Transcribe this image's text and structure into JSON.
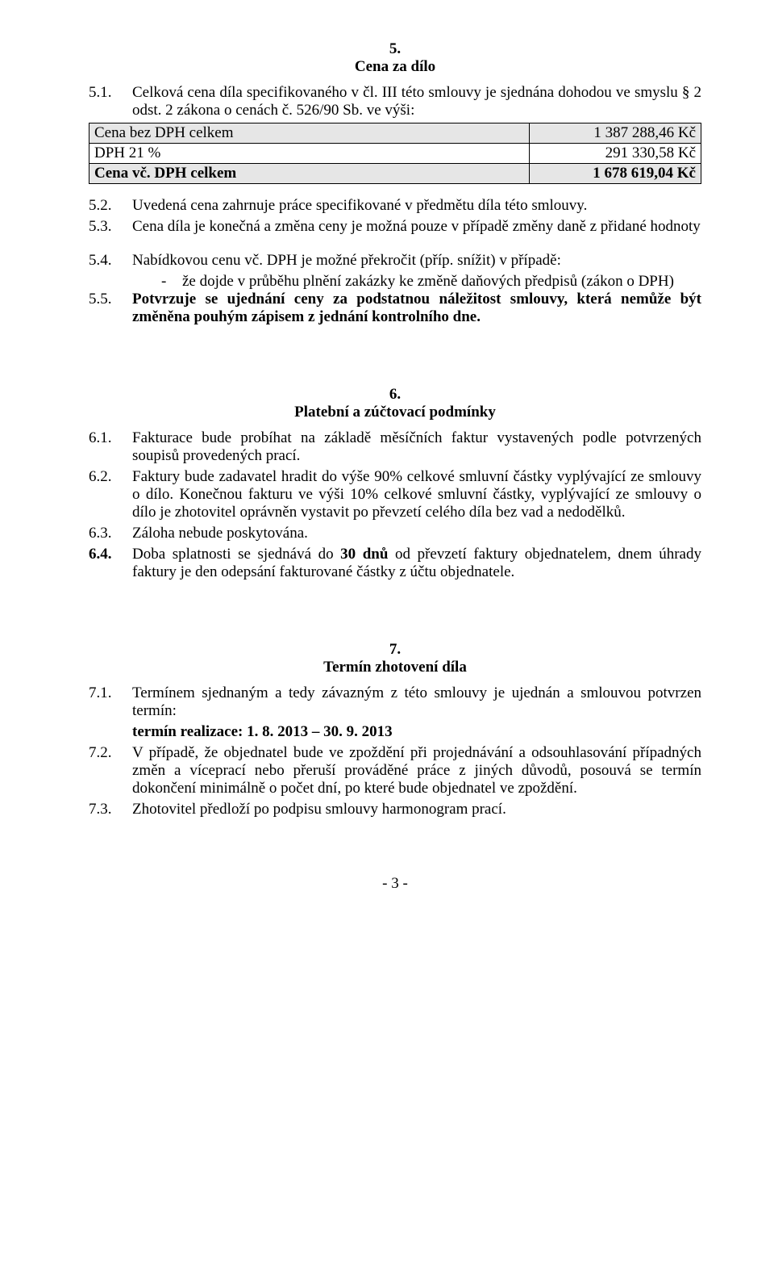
{
  "s5": {
    "num": "5.",
    "title": "Cena za dílo",
    "p51_num": "5.1.",
    "p51_txt": "Celková cena díla specifikovaného v čl. III této smlouvy  je sjednána dohodou ve smyslu § 2 odst. 2 zákona o cenách č. 526/90 Sb. ve výši:",
    "table": {
      "r1_label": "Cena bez DPH celkem",
      "r1_val": "1 387 288,46 Kč",
      "r2_label": "DPH 21 %",
      "r2_val": "291 330,58 Kč",
      "r3_label": "Cena vč. DPH celkem",
      "r3_val": "1 678 619,04 Kč"
    },
    "p52_num": "5.2.",
    "p52_txt": "Uvedená cena zahrnuje práce specifikované v předmětu díla této smlouvy.",
    "p53_num": "5.3.",
    "p53_txt": "Cena díla je konečná a změna ceny je možná pouze v případě změny daně z přidané hodnoty",
    "p54_num": "5.4.",
    "p54_txt": "Nabídkovou cenu vč. DPH je možné překročit (příp. snížit) v případě:",
    "p54_dash_txt": "že dojde v průběhu plnění zakázky ke změně daňových předpisů (zákon o DPH)",
    "p55_num": "5.5.",
    "p55_txt": "Potvrzuje se ujednání ceny za podstatnou náležitost smlouvy, která nemůže být změněna pouhým zápisem z jednání kontrolního dne."
  },
  "s6": {
    "num": "6.",
    "title": "Platební a zúčtovací podmínky",
    "p61_num": "6.1.",
    "p61_txt": "Fakturace bude probíhat na základě měsíčních faktur vystavených podle potvrzených soupisů provedených prací.",
    "p62_num": "6.2.",
    "p62_txt": "Faktury bude zadavatel hradit do výše 90% celkové smluvní částky vyplývající ze smlouvy o dílo. Konečnou fakturu ve výši 10% celkové smluvní částky, vyplývající ze smlouvy o dílo je zhotovitel oprávněn vystavit po převzetí celého díla bez vad a nedodělků.",
    "p63_num": "6.3.",
    "p63_txt": "Záloha nebude poskytována.",
    "p64_num": "6.4.",
    "p64_txt_a": "Doba splatnosti se sjednává do ",
    "p64_txt_b": "30 dnů",
    "p64_txt_c": " od převzetí faktury objednatelem, dnem úhrady faktury je den odepsání fakturované částky z účtu objednatele."
  },
  "s7": {
    "num": "7.",
    "title": "Termín zhotovení díla",
    "p71_num": "7.1.",
    "p71_txt": "Termínem sjednaným a tedy závazným z této smlouvy je ujednán a smlouvou potvrzen termín:",
    "p71_term": "termín realizace: 1. 8. 2013 – 30. 9. 2013",
    "p72_num": "7.2.",
    "p72_txt": "V případě, že objednatel bude ve zpoždění při projednávání a odsouhlasování případných změn a víceprací nebo přeruší prováděné práce z jiných důvodů, posouvá se termín dokončení minimálně o počet dní, po které bude objednatel ve zpoždění.",
    "p73_num": "7.3.",
    "p73_txt": "Zhotovitel předloží po podpisu smlouvy harmonogram prací."
  },
  "footer": "- 3 -"
}
